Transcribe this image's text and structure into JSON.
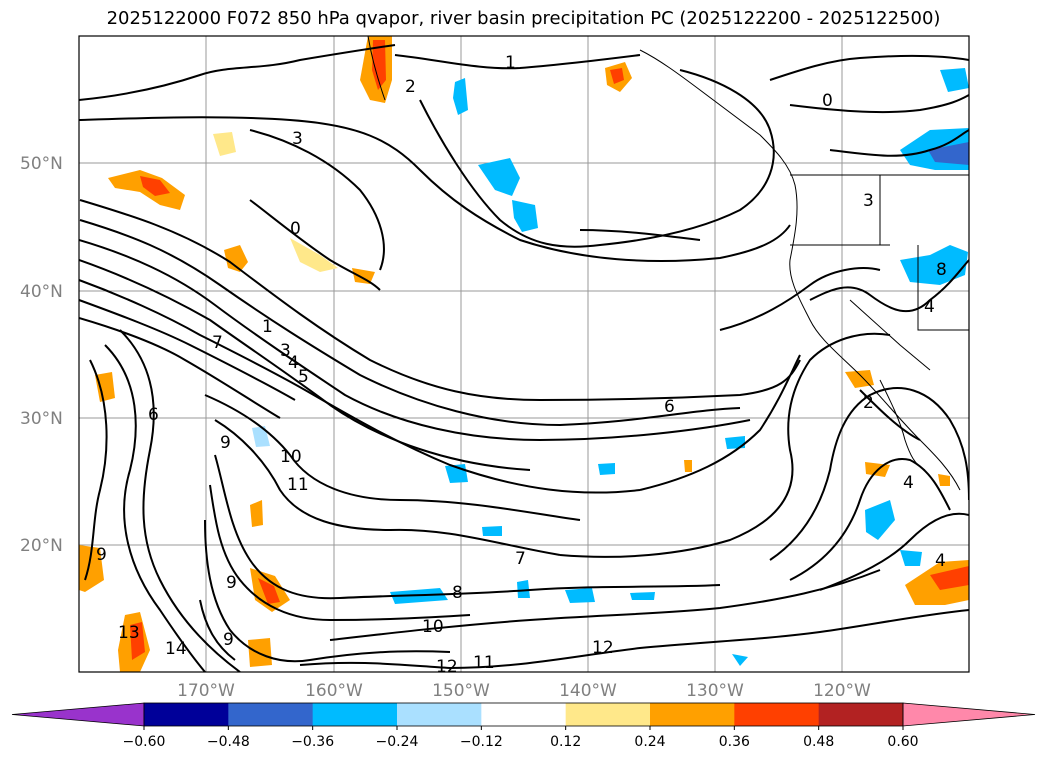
{
  "title": "2025122000 F072 850 hPa qvapor, river basin precipitation PC (2025122200 - 2025122500)",
  "lat_labels": [
    "50°N",
    "40°N",
    "30°N",
    "20°N"
  ],
  "lon_labels": [
    "170°W",
    "160°W",
    "150°W",
    "140°W",
    "130°W",
    "120°W"
  ],
  "colorbar": {
    "colors": [
      "#9933cc",
      "#000099",
      "#3366cc",
      "#00bbff",
      "#aae0ff",
      "#ffffff",
      "#ffe88a",
      "#ffa000",
      "#ff4000",
      "#b22222",
      "#ff88aa"
    ],
    "tick_labels": [
      "−0.60",
      "−0.48",
      "−0.36",
      "−0.24",
      "−0.12",
      "0.12",
      "0.24",
      "0.36",
      "0.48",
      "0.60"
    ]
  },
  "contour_labels": [
    "1",
    "2",
    "3",
    "0",
    "1",
    "3",
    "4",
    "5",
    "6",
    "7",
    "8",
    "9",
    "10",
    "11",
    "12",
    "13",
    "14",
    "10",
    "11",
    "12",
    "0",
    "3",
    "4",
    "2",
    "4",
    "4",
    "8",
    "9",
    "9",
    "9",
    "7",
    "6"
  ]
}
